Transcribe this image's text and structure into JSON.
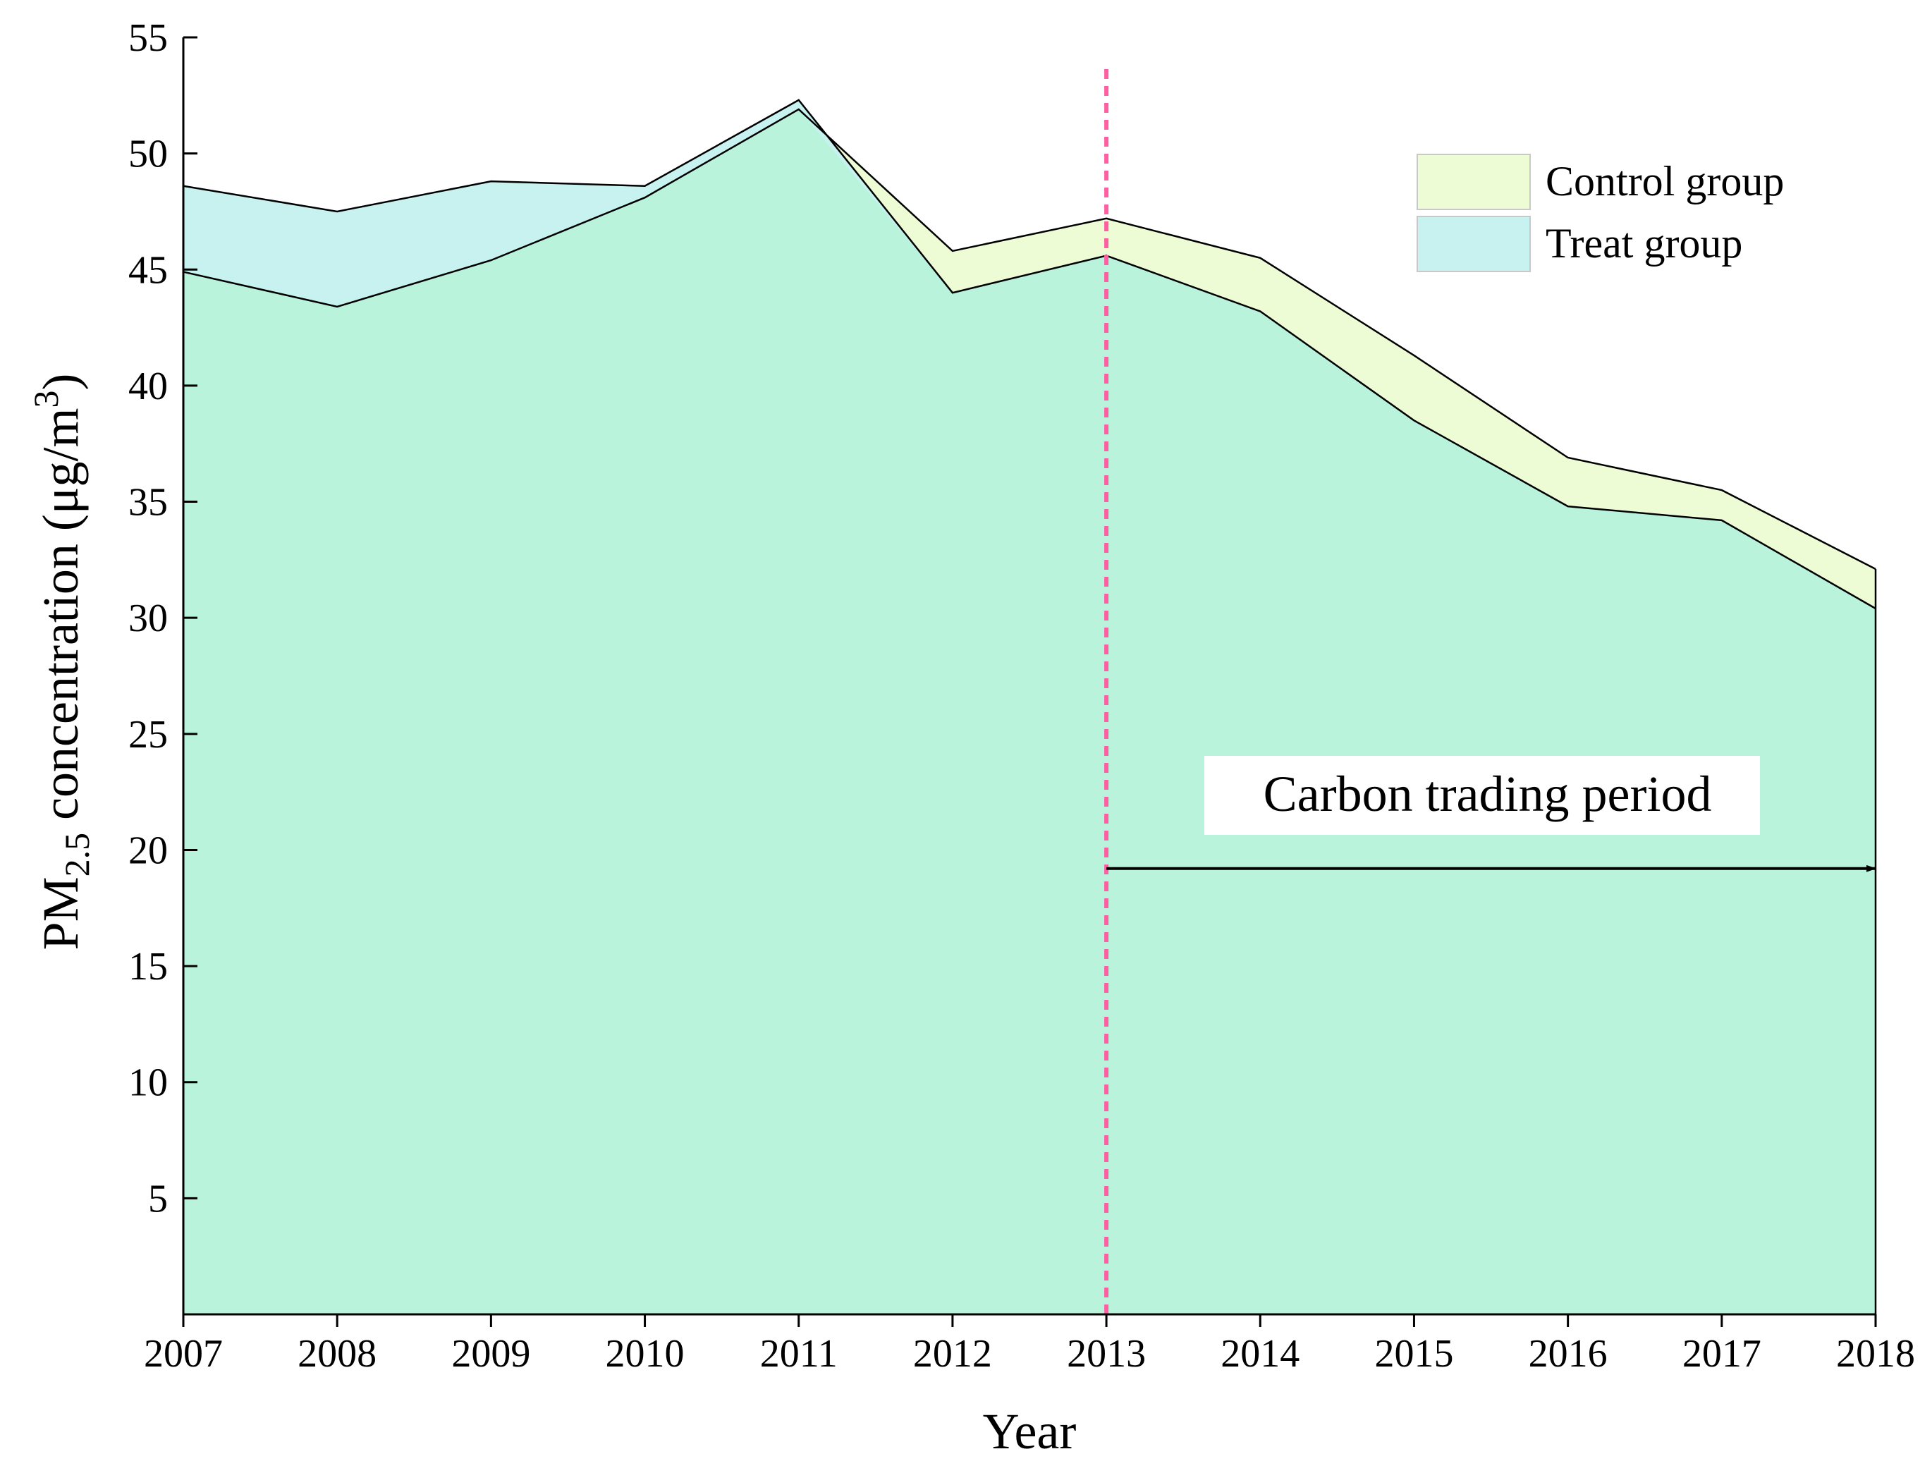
{
  "chart_data": {
    "type": "area",
    "x": [
      2007,
      2008,
      2009,
      2010,
      2011,
      2012,
      2013,
      2014,
      2015,
      2016,
      2017,
      2018
    ],
    "series": [
      {
        "name": "Control group",
        "color": "#eefcd6",
        "values": [
          44.9,
          43.4,
          45.4,
          48.1,
          51.9,
          45.8,
          47.2,
          45.5,
          41.3,
          36.9,
          35.5,
          32.1
        ]
      },
      {
        "name": "Treat group",
        "color": "#c7f2f0",
        "values": [
          48.6,
          47.5,
          48.8,
          48.6,
          52.3,
          44.0,
          45.6,
          43.2,
          38.5,
          34.8,
          34.2,
          30.4
        ]
      }
    ],
    "overlap_color": "#b9f3dc",
    "xlabel": "Year",
    "ylabel_parts": {
      "main": "PM",
      "subscript": "2.5",
      "rest": " concentration (μg/m",
      "superscript": "3",
      "end": ")"
    },
    "xlim": [
      2007,
      2018
    ],
    "ylim": [
      0,
      55
    ],
    "yticks": [
      5,
      10,
      15,
      20,
      25,
      30,
      35,
      40,
      45,
      50,
      55
    ],
    "legend_position": "top-right",
    "grid": false,
    "annotations": {
      "vline": {
        "x": 2013,
        "color": "#ff5fa2"
      },
      "period_label": "Carbon trading period",
      "arrow": {
        "from_x": 2013,
        "to_x": 2018,
        "y": 19.2
      }
    }
  }
}
